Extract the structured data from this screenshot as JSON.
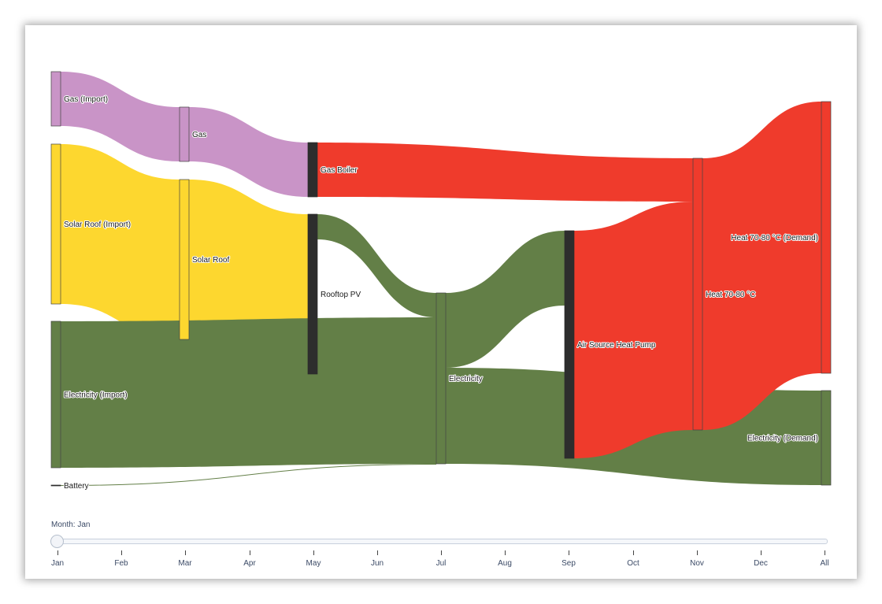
{
  "colors": {
    "gas": "#c994c7",
    "solar": "#fdd72f",
    "electricity": "#637f47",
    "heat": "#ef3b2c",
    "dark": "#2d2d2d"
  },
  "chart_data": {
    "type": "sankey",
    "nodes": [
      {
        "id": "gas_import",
        "label": "Gas (Import)",
        "color": "gas"
      },
      {
        "id": "solar_import",
        "label": "Solar Roof (Import)",
        "color": "solar"
      },
      {
        "id": "elec_import",
        "label": "Electricity (Import)",
        "color": "electricity"
      },
      {
        "id": "battery",
        "label": "Battery",
        "color": "dark"
      },
      {
        "id": "gas",
        "label": "Gas",
        "color": "gas"
      },
      {
        "id": "solar_roof",
        "label": "Solar Roof",
        "color": "solar"
      },
      {
        "id": "gas_boiler",
        "label": "Gas Boiler",
        "color": "dark"
      },
      {
        "id": "rooftop_pv",
        "label": "Rooftop PV",
        "color": "dark"
      },
      {
        "id": "electricity",
        "label": "Electricity",
        "color": "electricity"
      },
      {
        "id": "ashp",
        "label": "Air Source Heat Pump",
        "color": "dark"
      },
      {
        "id": "heat",
        "label": "Heat 70-80 °C",
        "color": "heat"
      },
      {
        "id": "heat_demand",
        "label": "Heat 70-80 °C (Demand)",
        "color": "heat"
      },
      {
        "id": "elec_demand",
        "label": "Electricity (Demand)",
        "color": "electricity"
      }
    ],
    "links": [
      {
        "source": "gas_import",
        "target": "gas",
        "value": 70,
        "color": "gas"
      },
      {
        "source": "solar_import",
        "target": "solar_roof",
        "value": 204,
        "color": "solar"
      },
      {
        "source": "gas",
        "target": "gas_boiler",
        "value": 70,
        "color": "gas"
      },
      {
        "source": "solar_roof",
        "target": "rooftop_pv",
        "value": 204,
        "color": "solar"
      },
      {
        "source": "gas_boiler",
        "target": "heat",
        "value": 70,
        "color": "heat"
      },
      {
        "source": "rooftop_pv",
        "target": "electricity",
        "value": 32,
        "color": "electricity"
      },
      {
        "source": "elec_import",
        "target": "electricity",
        "value": 186,
        "color": "electricity"
      },
      {
        "source": "battery",
        "target": "electricity",
        "value": 1,
        "color": "electricity"
      },
      {
        "source": "electricity",
        "target": "ashp",
        "value": 95,
        "color": "electricity"
      },
      {
        "source": "electricity",
        "target": "elec_demand",
        "value": 121,
        "color": "electricity"
      },
      {
        "source": "ashp",
        "target": "heat",
        "value": 276,
        "color": "heat"
      },
      {
        "source": "heat",
        "target": "heat_demand",
        "value": 346,
        "color": "heat"
      }
    ]
  },
  "slider": {
    "label": "Month: Jan",
    "ticks": [
      "Jan",
      "Feb",
      "Mar",
      "Apr",
      "May",
      "Jun",
      "Jul",
      "Aug",
      "Sep",
      "Oct",
      "Nov",
      "Dec",
      "All"
    ],
    "selected": "Jan"
  }
}
